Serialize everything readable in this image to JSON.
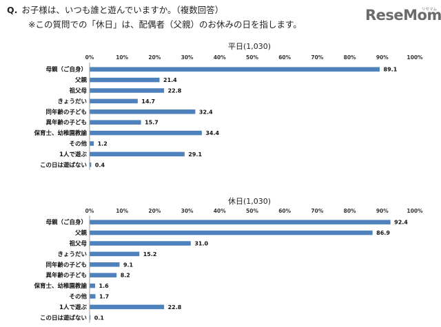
{
  "question": {
    "mark": "Q.",
    "text": "お子様は、いつも誰と遊んでいますか。（複数回答）",
    "note": "※この質問での「休日」は、配偶者（父親）のお休みの日を指します。"
  },
  "logo": {
    "text": "ReseMom",
    "sub": "リセマム",
    "color": "#6b6b6b"
  },
  "bar_color": "#4f81bd",
  "chart_data": [
    {
      "type": "bar",
      "orientation": "horizontal",
      "title": "平日(1,030)",
      "xlabel": "",
      "ylabel": "",
      "xlim": [
        0,
        100
      ],
      "ticks": [
        "0%",
        "10%",
        "20%",
        "30%",
        "40%",
        "50%",
        "60%",
        "70%",
        "80%",
        "90%",
        "100%"
      ],
      "categories": [
        "母親（ご自身）",
        "父親",
        "祖父母",
        "きょうだい",
        "同年齢の子ども",
        "異年齢の子ども",
        "保育士、幼稚園教諭",
        "その他",
        "1人で遊ぶ",
        "この日は遊ばない"
      ],
      "values": [
        89.1,
        21.4,
        22.8,
        14.7,
        32.4,
        15.7,
        34.4,
        1.2,
        29.1,
        0.4
      ],
      "value_labels": [
        "89.1",
        "21.4",
        "22.8",
        "14.7",
        "32.4",
        "15.7",
        "34.4",
        "1.2",
        "29.1",
        "0.4"
      ]
    },
    {
      "type": "bar",
      "orientation": "horizontal",
      "title": "休日(1,030)",
      "xlabel": "",
      "ylabel": "",
      "xlim": [
        0,
        100
      ],
      "ticks": [
        "0%",
        "10%",
        "20%",
        "30%",
        "40%",
        "50%",
        "60%",
        "70%",
        "80%",
        "90%",
        "100%"
      ],
      "categories": [
        "母親（ご自身）",
        "父親",
        "祖父母",
        "きょうだい",
        "同年齢の子ども",
        "異年齢の子ども",
        "保育士、幼稚園教諭",
        "その他",
        "1人で遊ぶ",
        "この日は遊ばない"
      ],
      "values": [
        92.4,
        86.9,
        31.0,
        15.2,
        9.1,
        8.2,
        1.6,
        1.7,
        22.8,
        0.1
      ],
      "value_labels": [
        "92.4",
        "86.9",
        "31.0",
        "15.2",
        "9.1",
        "8.2",
        "1.6",
        "1.7",
        "22.8",
        "0.1"
      ]
    }
  ]
}
